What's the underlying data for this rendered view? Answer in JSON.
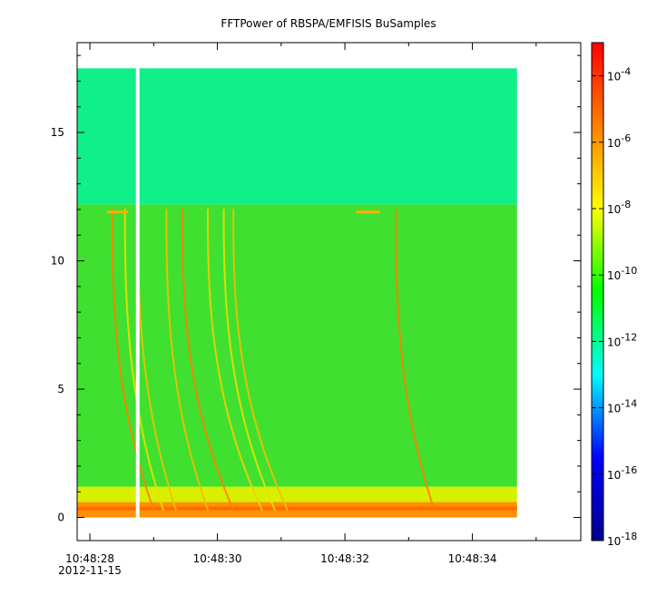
{
  "chart_data": {
    "type": "heatmap",
    "title": "FFTPower of RBSPA/EMFISIS  BuSamples",
    "xlabel": "",
    "ylabel": "",
    "x_ticks": [
      "10:48:28",
      "10:48:30",
      "10:48:32",
      "10:48:34"
    ],
    "x_date_label": "2012-11-15",
    "xlim_seconds_past_10_48_28": [
      -0.2,
      7.7
    ],
    "data_xrange_seconds_past_10_48_28": [
      -0.2,
      6.7
    ],
    "gap_seconds_past_10_48_28": 0.75,
    "y_ticks": [
      0,
      5,
      10,
      15
    ],
    "ylim": [
      -0.9,
      18.5
    ],
    "data_yrange": [
      0,
      17.5
    ],
    "background_bands": [
      {
        "y_range": [
          0,
          0.6
        ],
        "color": "#ff9000"
      },
      {
        "y_range": [
          0.6,
          1.2
        ],
        "color": "#d8f000"
      },
      {
        "y_range": [
          1.2,
          12.2
        ],
        "color": "#40e030"
      },
      {
        "y_range": [
          12.2,
          17.5
        ],
        "color": "#10f088"
      }
    ],
    "chorus_tones": [
      {
        "x_at_12": 0.35,
        "x_bottom": 1.0,
        "color": "#ff8000"
      },
      {
        "x_at_12": 0.55,
        "x_bottom": 1.15,
        "color": "#e8e000"
      },
      {
        "x_at_12": 0.75,
        "x_bottom": 1.35,
        "color": "#f0c000"
      },
      {
        "x_at_12": 1.2,
        "x_bottom": 1.85,
        "color": "#f0c000"
      },
      {
        "x_at_12": 1.45,
        "x_bottom": 2.25,
        "color": "#ff8000"
      },
      {
        "x_at_12": 1.85,
        "x_bottom": 2.7,
        "color": "#f0d000"
      },
      {
        "x_at_12": 2.1,
        "x_bottom": 2.9,
        "color": "#e8e000"
      },
      {
        "x_at_12": 2.25,
        "x_bottom": 3.1,
        "color": "#f0c000"
      },
      {
        "x_at_12": 4.8,
        "x_bottom": 5.4,
        "color": "#ff8000"
      }
    ],
    "horizontal_segments": [
      {
        "x": [
          0.27,
          0.6
        ],
        "y": 11.9,
        "color": "#ffb000"
      },
      {
        "x": [
          4.17,
          4.55
        ],
        "y": 11.9,
        "color": "#ffb000"
      }
    ],
    "colorbar": {
      "scale": "log",
      "range": [
        1e-18,
        0.001
      ],
      "tick_labels": [
        {
          "base": "10",
          "exp": "-4"
        },
        {
          "base": "10",
          "exp": "-6"
        },
        {
          "base": "10",
          "exp": "-8"
        },
        {
          "base": "10",
          "exp": "-10"
        },
        {
          "base": "10",
          "exp": "-12"
        },
        {
          "base": "10",
          "exp": "-14"
        },
        {
          "base": "10",
          "exp": "-16"
        },
        {
          "base": "10",
          "exp": "-18"
        }
      ],
      "tick_exponents": [
        -4,
        -6,
        -8,
        -10,
        -12,
        -14,
        -16,
        -18
      ],
      "stops": [
        "#00008f",
        "#0000ff",
        "#00ffff",
        "#00ff00",
        "#ffff00",
        "#ff8000",
        "#ff0000"
      ]
    },
    "grid": false,
    "legend": "none"
  }
}
